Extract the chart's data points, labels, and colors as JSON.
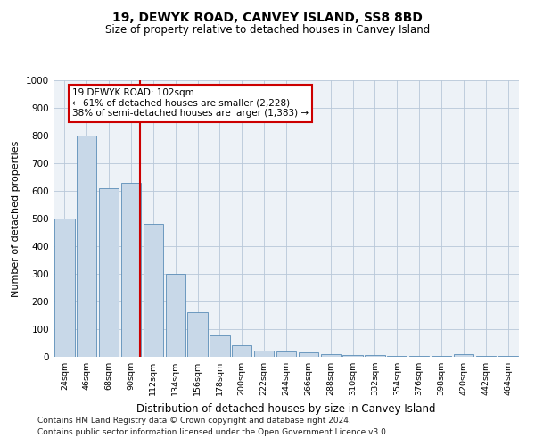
{
  "title1": "19, DEWYK ROAD, CANVEY ISLAND, SS8 8BD",
  "title2": "Size of property relative to detached houses in Canvey Island",
  "xlabel": "Distribution of detached houses by size in Canvey Island",
  "ylabel": "Number of detached properties",
  "bins": [
    "24sqm",
    "46sqm",
    "68sqm",
    "90sqm",
    "112sqm",
    "134sqm",
    "156sqm",
    "178sqm",
    "200sqm",
    "222sqm",
    "244sqm",
    "266sqm",
    "288sqm",
    "310sqm",
    "332sqm",
    "354sqm",
    "376sqm",
    "398sqm",
    "420sqm",
    "442sqm",
    "464sqm"
  ],
  "values": [
    500,
    800,
    610,
    630,
    480,
    300,
    160,
    78,
    42,
    22,
    20,
    15,
    10,
    5,
    5,
    3,
    3,
    3,
    10,
    3,
    3
  ],
  "bar_color": "#c8d8e8",
  "bar_edge_color": "#5b8db8",
  "vline_color": "#cc0000",
  "annotation_line1": "19 DEWYK ROAD: 102sqm",
  "annotation_line2": "← 61% of detached houses are smaller (2,228)",
  "annotation_line3": "38% of semi-detached houses are larger (1,383) →",
  "annotation_box_color": "#ffffff",
  "annotation_box_edge": "#cc0000",
  "ylim": [
    0,
    1000
  ],
  "yticks": [
    0,
    100,
    200,
    300,
    400,
    500,
    600,
    700,
    800,
    900,
    1000
  ],
  "footnote1": "Contains HM Land Registry data © Crown copyright and database right 2024.",
  "footnote2": "Contains public sector information licensed under the Open Government Licence v3.0.",
  "bg_color": "#edf2f7",
  "grid_color": "#b8c8d8"
}
